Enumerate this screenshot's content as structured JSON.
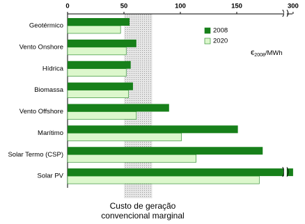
{
  "chart_data": {
    "type": "hbar",
    "categories": [
      "Geotérmico",
      "Vento Onshore",
      "Hídrica",
      "Biomassa",
      "Vento Offshore",
      "Marítimo",
      "Solar Termo (CSP)",
      "Solar PV"
    ],
    "series": [
      {
        "name": "2008",
        "color": "#17801a",
        "values": [
          55,
          61,
          56,
          58,
          90,
          151,
          173,
          300
        ]
      },
      {
        "name": "2020",
        "color": "#dcf7cc",
        "values": [
          47,
          52,
          52,
          54,
          61,
          101,
          114,
          170
        ]
      }
    ],
    "xlim": [
      0,
      300
    ],
    "xticks": [
      0,
      50,
      100,
      150,
      300
    ],
    "xbreak": [
      190,
      295
    ],
    "x_label": {
      "symbol": "€",
      "sub": "2008",
      "unit": "/MWh"
    },
    "shaded_range": [
      50,
      75
    ],
    "annotation": [
      "Custo de geração",
      "convencional marginal"
    ],
    "legend": "top-right"
  }
}
